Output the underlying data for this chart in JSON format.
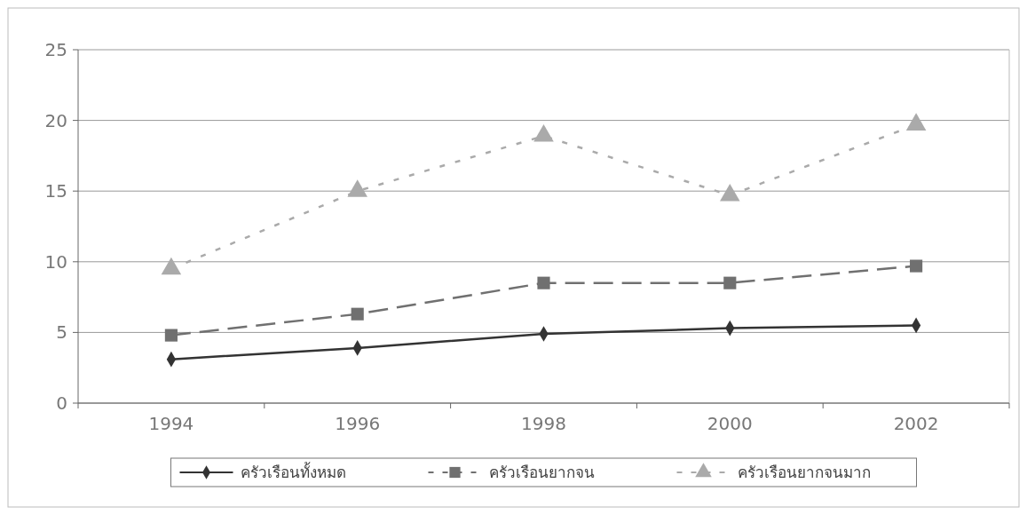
{
  "chart_data": {
    "type": "line",
    "categories": [
      "1994",
      "1996",
      "1998",
      "2000",
      "2002"
    ],
    "series": [
      {
        "name": "ครัวเรือนทั้งหมด",
        "color": "#333333",
        "values": [
          3.1,
          3.9,
          4.9,
          5.3,
          5.5
        ],
        "marker": "diamond",
        "line_style": "solid"
      },
      {
        "name": "ครัวเรือนยากจน",
        "color": "#707070",
        "values": [
          4.8,
          6.3,
          8.5,
          8.5,
          9.7
        ],
        "marker": "square",
        "line_style": "dashed"
      },
      {
        "name": "ครัวเรือนยากจนมาก",
        "color": "#aaaaaa",
        "values": [
          9.5,
          15.0,
          18.9,
          14.7,
          19.7
        ],
        "marker": "triangle",
        "line_style": "dotted"
      }
    ],
    "ylim": [
      0,
      25
    ],
    "yticks": [
      0,
      5,
      10,
      15,
      20,
      25
    ],
    "grid": "y",
    "legend": "bottom"
  }
}
